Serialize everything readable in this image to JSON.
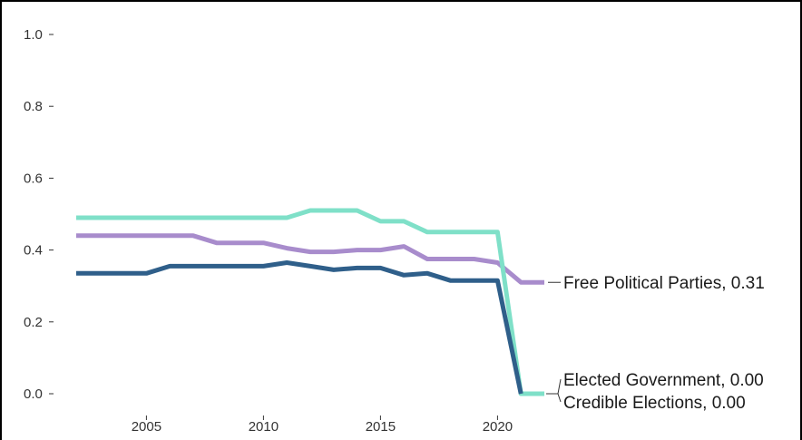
{
  "chart_data": {
    "type": "line",
    "title": "",
    "xlabel": "",
    "ylabel": "",
    "xlim": [
      2002,
      2022
    ],
    "ylim": [
      0.0,
      1.0
    ],
    "grid": false,
    "legend": "none (labels at line ends)",
    "x_ticks": [
      {
        "value": 2005,
        "label": "2005"
      },
      {
        "value": 2010,
        "label": "2010"
      },
      {
        "value": 2015,
        "label": "2015"
      },
      {
        "value": 2020,
        "label": "2020"
      }
    ],
    "y_ticks": [
      {
        "value": 0.0,
        "label": "0.0"
      },
      {
        "value": 0.2,
        "label": "0.2"
      },
      {
        "value": 0.4,
        "label": "0.4"
      },
      {
        "value": 0.6,
        "label": "0.6"
      },
      {
        "value": 0.8,
        "label": "0.8"
      },
      {
        "value": 1.0,
        "label": "1.0"
      }
    ],
    "x": [
      2002,
      2003,
      2004,
      2005,
      2006,
      2007,
      2008,
      2009,
      2010,
      2011,
      2012,
      2013,
      2014,
      2015,
      2016,
      2017,
      2018,
      2019,
      2020,
      2021,
      2022
    ],
    "series": [
      {
        "name": "Free Political Parties",
        "color": "#a88ccc",
        "end_label": "Free Political Parties, 0.31",
        "values": [
          0.44,
          0.44,
          0.44,
          0.44,
          0.44,
          0.44,
          0.42,
          0.42,
          0.42,
          0.405,
          0.395,
          0.395,
          0.4,
          0.4,
          0.41,
          0.375,
          0.375,
          0.375,
          0.365,
          0.31,
          0.31
        ]
      },
      {
        "name": "Elected Government",
        "color": "#7fe0c8",
        "end_label": "Elected Government, 0.00",
        "values": [
          0.49,
          0.49,
          0.49,
          0.49,
          0.49,
          0.49,
          0.49,
          0.49,
          0.49,
          0.49,
          0.51,
          0.51,
          0.51,
          0.48,
          0.48,
          0.45,
          0.45,
          0.45,
          0.45,
          0.0,
          0.0
        ]
      },
      {
        "name": "Credible Elections",
        "color": "#2f5f8a",
        "end_label": "Credible Elections, 0.00",
        "values": [
          0.335,
          0.335,
          0.335,
          0.335,
          0.355,
          0.355,
          0.355,
          0.355,
          0.355,
          0.365,
          0.355,
          0.345,
          0.35,
          0.35,
          0.33,
          0.335,
          0.315,
          0.315,
          0.315,
          0.0,
          null
        ]
      }
    ]
  }
}
